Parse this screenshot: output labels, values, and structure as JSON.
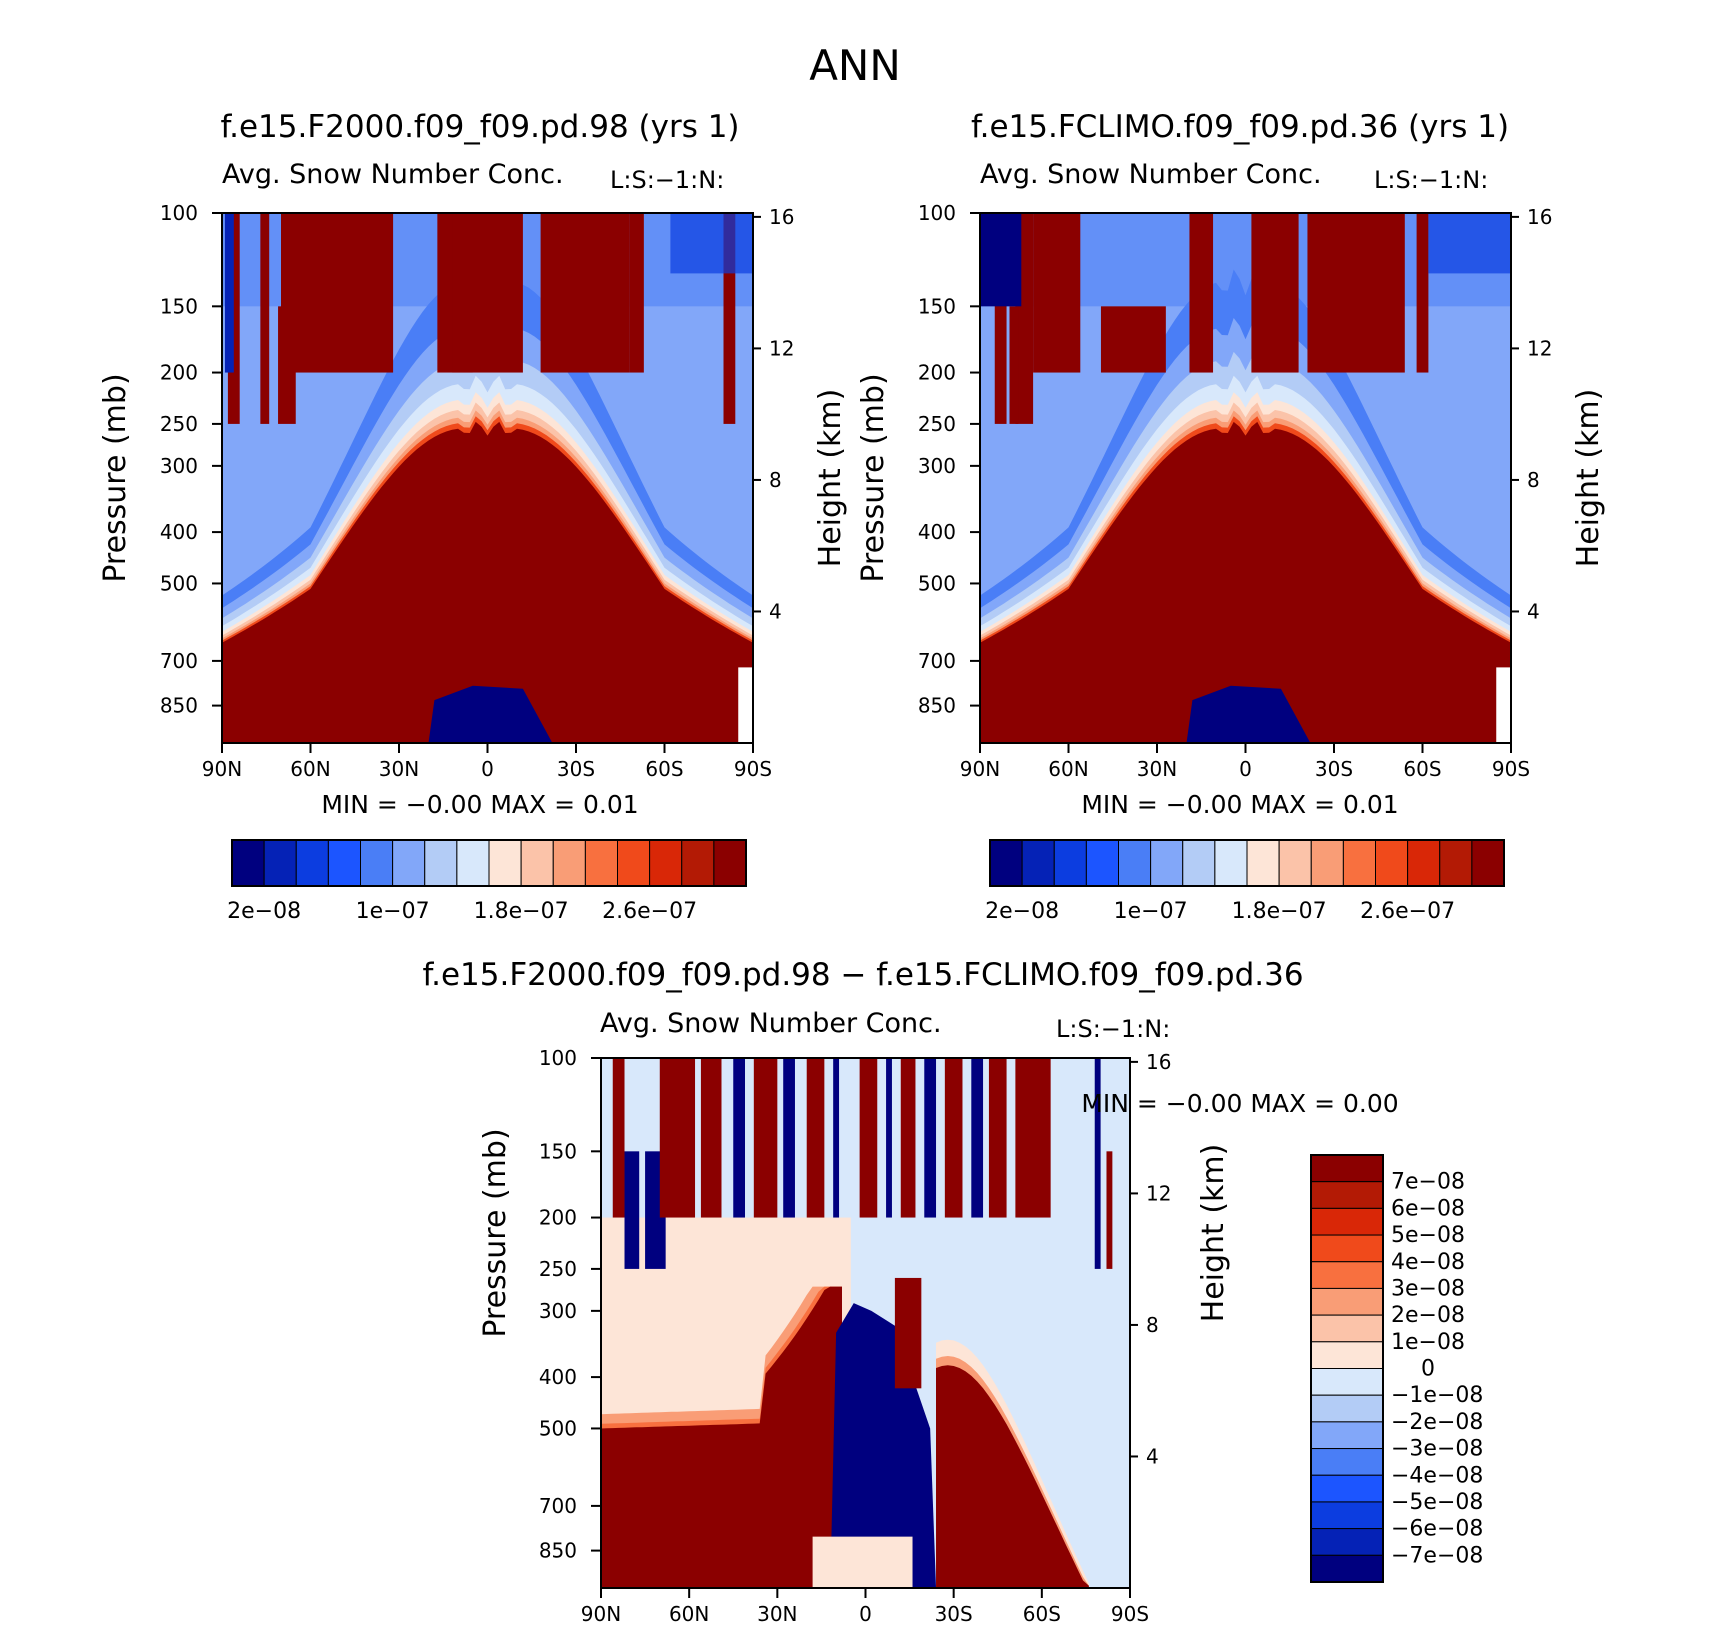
{
  "figure": {
    "title": "ANN",
    "panel_titles": [
      "f.e15.F2000.f09_f09.pd.98 (yrs 1)",
      "f.e15.FCLIMO.f09_f09.pd.36 (yrs 1)"
    ],
    "diff_title": "f.e15.F2000.f09_f09.pd.98 - f.e15.FCLIMO.f09_f09.pd.36",
    "subtitle": "Avg. Snow Number Conc.",
    "level_tag": "L:S:-1:N:"
  },
  "chart_data": [
    {
      "type": "contour",
      "id": "panel-1",
      "title": "f.e15.F2000.f09_f09.pd.98 (yrs 1)",
      "subtitle": "Avg. Snow Number Conc.",
      "tag": "L:S:-1:N:",
      "xlabel": "",
      "ylabel": "Pressure (mb)",
      "ylabel_right": "Height (km)",
      "x_ticks": [
        "90N",
        "60N",
        "30N",
        "0",
        "30S",
        "60S",
        "90S"
      ],
      "y_ticks": [
        100,
        150,
        200,
        250,
        300,
        400,
        500,
        700,
        850
      ],
      "y_right_ticks": [
        16,
        12,
        8,
        4
      ],
      "ylim": [
        100,
        1000
      ],
      "min_label": "MIN =",
      "min_value": "-0.00",
      "max_label": "MAX =",
      "max_value": "0.01",
      "colorbar_labels": [
        "2e-08",
        "1e-07",
        "1.8e-07",
        "2.6e-07"
      ],
      "colorbar_colors": [
        "#00007f",
        "#0522b6",
        "#0c3de0",
        "#1c55ff",
        "#4a7ef6",
        "#82a7f9",
        "#b3ccf6",
        "#d8e8fb",
        "#fde5d7",
        "#fbc3a9",
        "#f99d76",
        "#f8703f",
        "#f04a1b",
        "#d92707",
        "#b31a05",
        "#8b0000"
      ]
    },
    {
      "type": "contour",
      "id": "panel-2",
      "title": "f.e15.FCLIMO.f09_f09.pd.36 (yrs 1)",
      "subtitle": "Avg. Snow Number Conc.",
      "tag": "L:S:-1:N:",
      "xlabel": "",
      "ylabel": "Pressure (mb)",
      "ylabel_right": "Height (km)",
      "x_ticks": [
        "90N",
        "60N",
        "30N",
        "0",
        "30S",
        "60S",
        "90S"
      ],
      "y_ticks": [
        100,
        150,
        200,
        250,
        300,
        400,
        500,
        700,
        850
      ],
      "y_right_ticks": [
        16,
        12,
        8,
        4
      ],
      "ylim": [
        100,
        1000
      ],
      "min_label": "MIN =",
      "min_value": "-0.00",
      "max_label": "MAX =",
      "max_value": "0.01",
      "colorbar_labels": [
        "2e-08",
        "1e-07",
        "1.8e-07",
        "2.6e-07"
      ],
      "colorbar_colors": [
        "#00007f",
        "#0522b6",
        "#0c3de0",
        "#1c55ff",
        "#4a7ef6",
        "#82a7f9",
        "#b3ccf6",
        "#d8e8fb",
        "#fde5d7",
        "#fbc3a9",
        "#f99d76",
        "#f8703f",
        "#f04a1b",
        "#d92707",
        "#b31a05",
        "#8b0000"
      ]
    },
    {
      "type": "contour",
      "id": "panel-diff",
      "title": "f.e15.F2000.f09_f09.pd.98 - f.e15.FCLIMO.f09_f09.pd.36",
      "subtitle": "Avg. Snow Number Conc.",
      "tag": "L:S:-1:N:",
      "xlabel": "",
      "ylabel": "Pressure (mb)",
      "ylabel_right": "Height (km)",
      "x_ticks": [
        "90N",
        "60N",
        "30N",
        "0",
        "30S",
        "60S",
        "90S"
      ],
      "y_ticks": [
        100,
        150,
        200,
        250,
        300,
        400,
        500,
        700,
        850
      ],
      "y_right_ticks": [
        16,
        12,
        8,
        4
      ],
      "ylim": [
        100,
        1000
      ],
      "min_label": "MIN =",
      "min_value": "-0.00",
      "max_label": "MAX =",
      "max_value": "0.00",
      "colorbar_labels": [
        "7e-08",
        "6e-08",
        "5e-08",
        "4e-08",
        "3e-08",
        "2e-08",
        "1e-08",
        "0",
        "-1e-08",
        "-2e-08",
        "-3e-08",
        "-4e-08",
        "-5e-08",
        "-6e-08",
        "-7e-08"
      ],
      "colorbar_colors": [
        "#8b0000",
        "#b31a05",
        "#d92707",
        "#f04a1b",
        "#f8703f",
        "#f99d76",
        "#fbc3a9",
        "#fde5d7",
        "#d8e8fb",
        "#b3ccf6",
        "#82a7f9",
        "#4a7ef6",
        "#1c55ff",
        "#0c3de0",
        "#0522b6",
        "#00007f"
      ]
    }
  ]
}
